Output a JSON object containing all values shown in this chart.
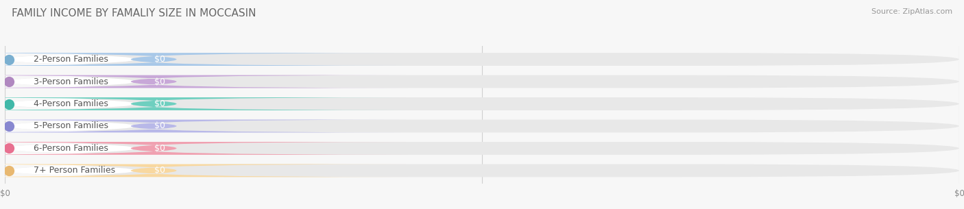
{
  "title": "FAMILY INCOME BY FAMALIY SIZE IN MOCCASIN",
  "source": "Source: ZipAtlas.com",
  "categories": [
    "2-Person Families",
    "3-Person Families",
    "4-Person Families",
    "5-Person Families",
    "6-Person Families",
    "7+ Person Families"
  ],
  "values": [
    0,
    0,
    0,
    0,
    0,
    0
  ],
  "bar_colors": [
    "#a8c8e8",
    "#c8a8d8",
    "#6ecfbf",
    "#b8b8e8",
    "#f0a0b0",
    "#f8d8a0"
  ],
  "dot_colors": [
    "#7aafd0",
    "#b088c0",
    "#40b8a8",
    "#8888d0",
    "#e87090",
    "#e8b870"
  ],
  "background_color": "#f7f7f7",
  "track_color": "#e8e8e8",
  "label_bg_color": "#ffffff",
  "title_fontsize": 11,
  "source_fontsize": 8,
  "label_fontsize": 9,
  "value_fontsize": 9
}
